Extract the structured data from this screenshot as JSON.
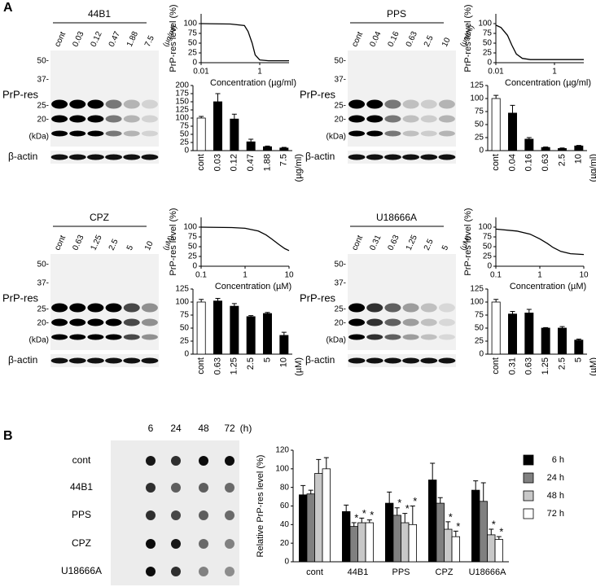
{
  "panel_labels": [
    "A",
    "B"
  ],
  "blots": [
    {
      "title": "44B1",
      "lanes": [
        "cont",
        "0.03",
        "0.12",
        "0.47",
        "1.88",
        "7.5"
      ],
      "unit": "(µg/ml)",
      "markers": [
        "50-",
        "37-",
        "25-",
        "20-",
        "(kDa)"
      ],
      "band_label": "PrP-res",
      "control": "β-actin"
    },
    {
      "title": "PPS",
      "lanes": [
        "cont",
        "0.04",
        "0.16",
        "0.63",
        "2.5",
        "10"
      ],
      "unit": "(µg/ml)",
      "markers": [
        "50-",
        "37-",
        "25-",
        "20-",
        "(kDa)"
      ],
      "band_label": "PrP-res",
      "control": "β-actin"
    },
    {
      "title": "CPZ",
      "lanes": [
        "cont",
        "0.63",
        "1.25",
        "2.5",
        "5",
        "10"
      ],
      "unit": "(µM)",
      "markers": [
        "50-",
        "37-",
        "25-",
        "20-",
        "(kDa)"
      ],
      "band_label": "PrP-res",
      "control": "β-actin"
    },
    {
      "title": "U18666A",
      "lanes": [
        "cont",
        "0.31",
        "0.63",
        "1.25",
        "2.5",
        "5"
      ],
      "unit": "(µM)",
      "markers": [
        "50-",
        "37-",
        "25-",
        "20-",
        "(kDa)"
      ],
      "band_label": "PrP-res",
      "control": "β-actin"
    }
  ],
  "chart_data": [
    {
      "type": "line",
      "ylabel": "PrP-res level (%)",
      "xlabel": "Concentration (µg/ml)",
      "log_x": true,
      "xlim": [
        0.01,
        10
      ],
      "xticks": [
        0.01,
        1
      ],
      "ylim": [
        0,
        125
      ],
      "yticks": [
        0,
        25,
        50,
        75,
        100
      ],
      "x": [
        0.01,
        0.1,
        0.3,
        0.4,
        0.55,
        0.7,
        1,
        2,
        10
      ],
      "y": [
        100,
        99,
        95,
        80,
        50,
        20,
        7,
        5,
        5
      ],
      "color": "#000000"
    },
    {
      "type": "bar",
      "categories": [
        "cont",
        "0.03",
        "0.12",
        "0.47",
        "1.88",
        "7.5"
      ],
      "unit": "(µg/ml)",
      "values": [
        100,
        150,
        97,
        27,
        12,
        8
      ],
      "errors": [
        5,
        25,
        15,
        8,
        2,
        2
      ],
      "colors": [
        "#ffffff",
        "#000000",
        "#000000",
        "#000000",
        "#000000",
        "#000000"
      ],
      "ylim": [
        0,
        200
      ],
      "yticks": [
        0,
        25,
        50,
        75,
        100,
        125,
        150,
        175,
        200
      ]
    },
    {
      "type": "line",
      "ylabel": "PrP-res level (%)",
      "xlabel": "Concentration (µg/ml)",
      "log_x": true,
      "xlim": [
        0.01,
        10
      ],
      "xticks": [
        0.01,
        1
      ],
      "ylim": [
        0,
        125
      ],
      "yticks": [
        0,
        25,
        50,
        75,
        100
      ],
      "x": [
        0.01,
        0.015,
        0.025,
        0.035,
        0.05,
        0.08,
        0.15,
        1,
        10
      ],
      "y": [
        96,
        90,
        70,
        45,
        22,
        11,
        8,
        8,
        8
      ],
      "color": "#000000"
    },
    {
      "type": "bar",
      "categories": [
        "cont",
        "0.04",
        "0.16",
        "0.63",
        "2.5",
        "10"
      ],
      "unit": "(µg/ml)",
      "values": [
        100,
        72,
        22,
        6,
        4,
        9
      ],
      "errors": [
        6,
        15,
        3,
        1,
        1,
        1
      ],
      "colors": [
        "#ffffff",
        "#000000",
        "#000000",
        "#000000",
        "#000000",
        "#000000"
      ],
      "ylim": [
        0,
        125
      ],
      "yticks": [
        0,
        25,
        50,
        75,
        100,
        125
      ]
    },
    {
      "type": "line",
      "ylabel": "PrP-res level (%)",
      "xlabel": "Concentration (µM)",
      "log_x": true,
      "xlim": [
        0.1,
        10
      ],
      "xticks": [
        0.1,
        1,
        10
      ],
      "ylim": [
        0,
        125
      ],
      "yticks": [
        0,
        25,
        50,
        75,
        100
      ],
      "x": [
        0.1,
        0.5,
        1,
        2,
        3,
        4,
        6,
        8,
        10
      ],
      "y": [
        100,
        99,
        97,
        90,
        80,
        70,
        55,
        45,
        40
      ],
      "color": "#000000"
    },
    {
      "type": "bar",
      "categories": [
        "cont",
        "0.63",
        "1.25",
        "2.5",
        "5",
        "10"
      ],
      "unit": "(µM)",
      "values": [
        100,
        102,
        92,
        72,
        78,
        36
      ],
      "errors": [
        5,
        5,
        5,
        2,
        2,
        6
      ],
      "colors": [
        "#ffffff",
        "#000000",
        "#000000",
        "#000000",
        "#000000",
        "#000000"
      ],
      "ylim": [
        0,
        125
      ],
      "yticks": [
        0,
        25,
        50,
        75,
        100,
        125
      ]
    },
    {
      "type": "line",
      "ylabel": "PrP-res level (%)",
      "xlabel": "Concentration (µM)",
      "log_x": true,
      "xlim": [
        0.1,
        10
      ],
      "xticks": [
        0.1,
        1,
        10
      ],
      "ylim": [
        0,
        125
      ],
      "yticks": [
        0,
        25,
        50,
        75,
        100
      ],
      "x": [
        0.1,
        0.3,
        0.6,
        1,
        1.5,
        2,
        3,
        5,
        10
      ],
      "y": [
        95,
        90,
        82,
        70,
        58,
        48,
        38,
        32,
        30
      ],
      "color": "#000000"
    },
    {
      "type": "bar",
      "categories": [
        "cont",
        "0.31",
        "0.63",
        "1.25",
        "2.5",
        "5"
      ],
      "unit": "(µM)",
      "values": [
        100,
        77,
        79,
        50,
        50,
        27
      ],
      "errors": [
        5,
        5,
        7,
        1,
        3,
        2
      ],
      "colors": [
        "#ffffff",
        "#000000",
        "#000000",
        "#000000",
        "#000000",
        "#000000"
      ],
      "ylim": [
        0,
        125
      ],
      "yticks": [
        0,
        25,
        50,
        75,
        100,
        125
      ]
    },
    {
      "type": "grouped_bar",
      "ylabel": "Relative PrP-res level (%)",
      "categories": [
        "cont",
        "44B1",
        "PPS",
        "CPZ",
        "U18666A"
      ],
      "ylim": [
        0,
        120
      ],
      "yticks": [
        0,
        20,
        40,
        60,
        80,
        100,
        120
      ],
      "legend": "right",
      "series": [
        {
          "name": "6 h",
          "color": "#000000",
          "values": [
            72,
            54,
            63,
            88,
            77
          ],
          "errors": [
            10,
            7,
            12,
            18,
            10
          ],
          "significance": [
            null,
            null,
            null,
            null,
            null
          ]
        },
        {
          "name": "24 h",
          "color": "#808080",
          "values": [
            73,
            38,
            50,
            63,
            65
          ],
          "errors": [
            4,
            4,
            8,
            6,
            20
          ],
          "significance": [
            null,
            "*",
            "*",
            null,
            null
          ]
        },
        {
          "name": "48 h",
          "color": "#c8c8c8",
          "values": [
            95,
            42,
            42,
            35,
            29
          ],
          "errors": [
            15,
            5,
            10,
            8,
            6
          ],
          "significance": [
            null,
            "*",
            "*",
            "*",
            "*"
          ]
        },
        {
          "name": "72 h",
          "color": "#ffffff",
          "values": [
            100,
            42,
            40,
            27,
            24
          ],
          "errors": [
            12,
            3,
            20,
            6,
            3
          ],
          "significance": [
            null,
            "*",
            "*",
            "*",
            "*"
          ]
        }
      ]
    }
  ],
  "dot_blot": {
    "times": [
      "6",
      "24",
      "48",
      "72"
    ],
    "unit": "(h)",
    "rows": [
      "cont",
      "44B1",
      "PPS",
      "CPZ",
      "U18666A"
    ]
  }
}
